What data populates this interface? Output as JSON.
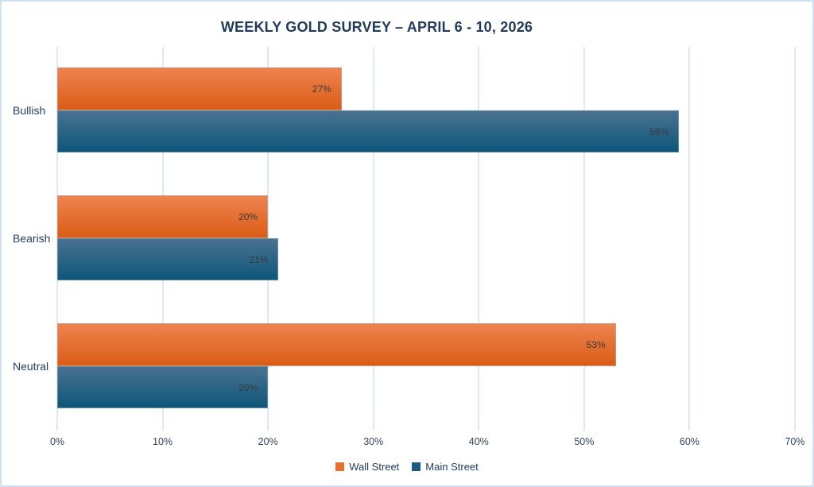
{
  "chart_data": {
    "type": "bar",
    "orientation": "horizontal",
    "title": "WEEKLY GOLD SURVEY – APRIL 6 - 10, 2026",
    "categories": [
      "Bullish",
      "Bearish",
      "Neutral"
    ],
    "series": [
      {
        "name": "Wall Street",
        "color": "#e8702e",
        "gradient_top": "#ee8350",
        "gradient_bottom": "#da5c15",
        "values": [
          27,
          20,
          53
        ]
      },
      {
        "name": "Main Street",
        "color": "#1b5c7f",
        "gradient_top": "#4a7290",
        "gradient_bottom": "#0d567a",
        "values": [
          59,
          21,
          20
        ]
      }
    ],
    "value_suffix": "%",
    "data_labels": [
      [
        "27%",
        "20%",
        "53%"
      ],
      [
        "59%",
        "21%",
        "20%"
      ]
    ],
    "x_ticks": [
      "0%",
      "10%",
      "20%",
      "30%",
      "40%",
      "50%",
      "60%",
      "70%"
    ],
    "xlim": [
      0,
      70
    ],
    "grid": true,
    "legend_position": "bottom"
  },
  "colors": {
    "background": "#ffffff",
    "frame_border": "#cfe1f2",
    "gridline": "#dce9f6",
    "title_text": "#1f3a5c",
    "tick_text": "#33445e",
    "category_text": "#243e5c",
    "data_label_text": "#3a3a3a",
    "wall_street": "#e8702e",
    "main_street": "#1b5c7f"
  }
}
